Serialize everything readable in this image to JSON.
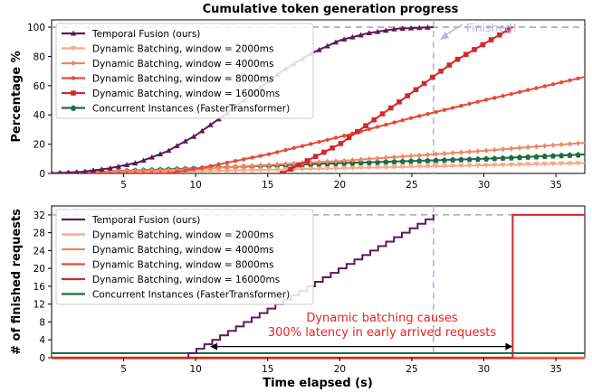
{
  "chart_data": [
    {
      "type": "line",
      "title": "Cumulative token generation progress",
      "xlabel": "",
      "ylabel": "Percentage %",
      "xlim": [
        0,
        37
      ],
      "ylim": [
        0,
        105
      ],
      "xticks": [
        5,
        10,
        15,
        20,
        25,
        30,
        35
      ],
      "yticks": [
        0,
        20,
        40,
        60,
        80,
        100
      ],
      "legend_position": "top-left",
      "annotation": "Finished!",
      "reference_lines": {
        "horizontal_y": 100,
        "vertical_x": 26.5
      },
      "series": [
        {
          "name": "Temporal Fusion (ours)",
          "color": "#5c1a57",
          "marker": "triangle",
          "x": [
            0,
            2,
            4,
            6,
            8,
            10,
            12,
            14,
            16,
            18,
            20,
            22,
            24,
            26.5
          ],
          "y": [
            0,
            1,
            3.5,
            7.5,
            15,
            26,
            40,
            55,
            70,
            82,
            91,
            96,
            99,
            100
          ]
        },
        {
          "name": "Dynamic Batching, window = 2000ms",
          "color": "#f9a98a",
          "marker": "triangle-down",
          "x": [
            0,
            10,
            20,
            30,
            37
          ],
          "y": [
            0,
            1.5,
            3.5,
            5.5,
            7
          ]
        },
        {
          "name": "Dynamic Batching, window = 4000ms",
          "color": "#f08761",
          "marker": "diamond",
          "x": [
            0,
            10,
            20,
            30,
            37
          ],
          "y": [
            0,
            3,
            8.5,
            15.5,
            21
          ]
        },
        {
          "name": "Dynamic Batching, window = 8000ms",
          "color": "#e64b35",
          "marker": "dot",
          "x": [
            0,
            8,
            10,
            15,
            20,
            25,
            30,
            37
          ],
          "y": [
            0,
            0,
            3,
            13,
            25,
            38,
            50,
            66
          ]
        },
        {
          "name": "Dynamic Batching, window = 16000ms",
          "color": "#d6262a",
          "marker": "square",
          "x": [
            16,
            20,
            24,
            28,
            32
          ],
          "y": [
            0,
            20,
            48,
            77,
            100
          ]
        },
        {
          "name": "Concurrent Instances (FasterTransformer)",
          "color": "#1f6b45",
          "marker": "pentagon",
          "x": [
            0,
            10,
            20,
            30,
            37
          ],
          "y": [
            0,
            3.5,
            7,
            10,
            13
          ]
        }
      ]
    },
    {
      "type": "line",
      "title": "",
      "xlabel": "Time elapsed (s)",
      "ylabel": "# of finished requests",
      "xlim": [
        0,
        37
      ],
      "ylim": [
        0,
        34
      ],
      "xticks": [
        5,
        10,
        15,
        20,
        25,
        30,
        35
      ],
      "yticks": [
        0,
        4,
        8,
        12,
        16,
        20,
        24,
        28,
        32
      ],
      "legend_position": "top-left",
      "annotation_lines": [
        "Dynamic batching causes",
        "300% latency in early arrived requests"
      ],
      "arrow_x": [
        11,
        32
      ],
      "arrow_y": 2.5,
      "reference_lines": {
        "horizontal_y": 32,
        "vertical_x": 26.5
      },
      "series": [
        {
          "name": "Temporal Fusion (ours)",
          "color": "#5c1a57",
          "step_start_x": 9.5,
          "step_end_x": 26.5,
          "start_y": 1,
          "end_y": 32
        },
        {
          "name": "Dynamic Batching, window = 2000ms",
          "color": "#f9a98a",
          "x": [
            0,
            37
          ],
          "y": [
            0,
            0
          ]
        },
        {
          "name": "Dynamic Batching, window = 4000ms",
          "color": "#f08761",
          "x": [
            0,
            37
          ],
          "y": [
            0,
            0
          ]
        },
        {
          "name": "Dynamic Batching, window = 8000ms",
          "color": "#e64b35",
          "x": [
            0,
            37
          ],
          "y": [
            0,
            0
          ]
        },
        {
          "name": "Dynamic Batching, window = 16000ms",
          "color": "#d6262a",
          "x": [
            0,
            32,
            32,
            37
          ],
          "y": [
            0,
            0,
            32,
            32
          ]
        },
        {
          "name": "Concurrent Instances (FasterTransformer)",
          "color": "#1f6b45",
          "x": [
            0,
            37
          ],
          "y": [
            1,
            1
          ]
        }
      ]
    }
  ]
}
